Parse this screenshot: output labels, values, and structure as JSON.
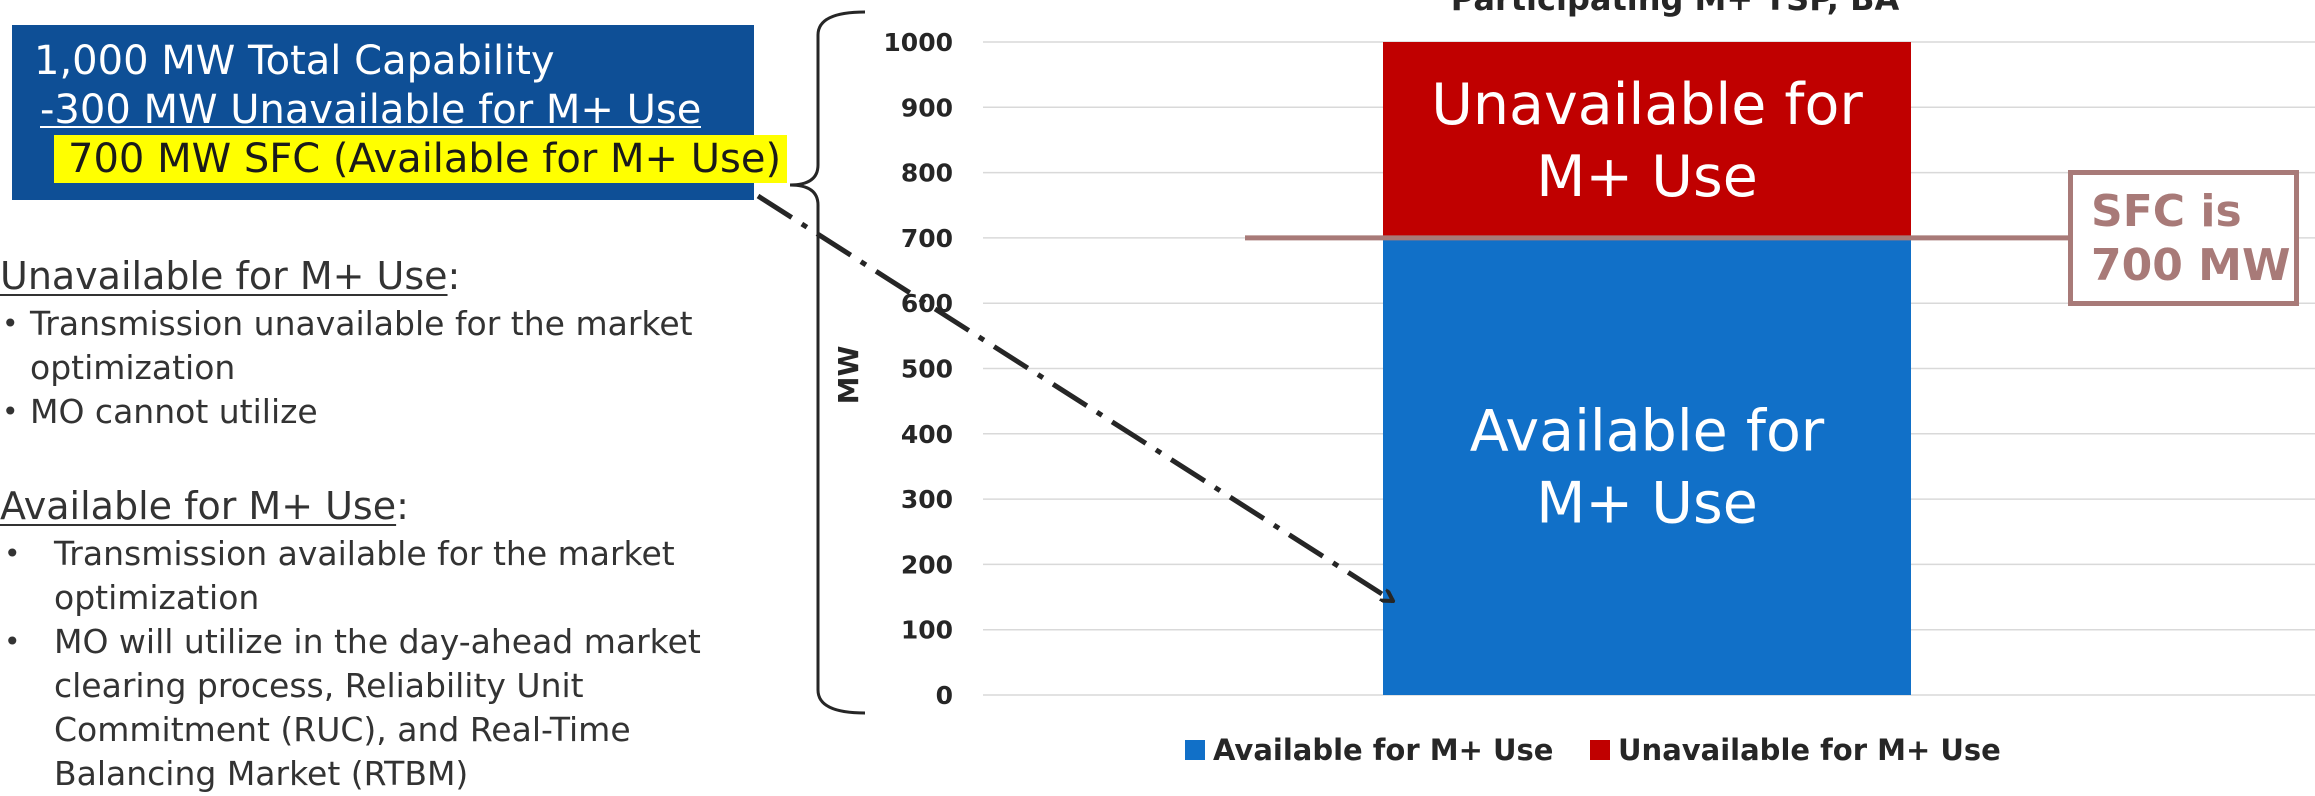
{
  "summary": {
    "line1": "1,000 MW Total Capability",
    "line2": "-300 MW Unavailable for M+ Use",
    "line3": "700 MW SFC (Available for M+ Use)"
  },
  "unavailable_section": {
    "heading": "Unavailable for M+ Use",
    "colon": ":",
    "bullets": [
      [
        "Transmission unavailable for the market",
        "optimization"
      ],
      [
        "MO cannot utilize"
      ]
    ]
  },
  "available_section": {
    "heading": "Available for M+ Use",
    "colon": ":",
    "bullets": [
      [
        "Transmission available for the market",
        "optimization"
      ],
      [
        "MO will utilize in the day-ahead market",
        "clearing process, Reliability Unit",
        "Commitment (RUC), and Real-Time",
        "Balancing Market (RTBM)"
      ]
    ]
  },
  "sfc_callout": {
    "line1": "SFC is",
    "line2": "700 MW",
    "color": "#a87a78"
  },
  "colors": {
    "available": "#1170c8",
    "unavailable": "#c00000",
    "box": "#0e4f96",
    "highlight": "#ffff00",
    "sfc_line": "#a87a78"
  },
  "chart_data": {
    "type": "bar",
    "stacked": true,
    "title": "Participating M+ TSP, BA",
    "ylabel": "MW",
    "xlabel": "",
    "ylim": [
      0,
      1000
    ],
    "yticks": [
      0,
      100,
      200,
      300,
      400,
      500,
      600,
      700,
      800,
      900,
      1000
    ],
    "grid": true,
    "legend_position": "bottom",
    "categories": [
      ""
    ],
    "series": [
      {
        "name": "Available for M+ Use",
        "values": [
          700
        ],
        "color": "#1170c8",
        "bar_label": [
          "Available for",
          "M+ Use"
        ]
      },
      {
        "name": "Unavailable for M+ Use",
        "values": [
          300
        ],
        "color": "#c00000",
        "bar_label": [
          "Unavailable for",
          "M+ Use"
        ]
      }
    ],
    "reference_line": {
      "value": 700
    }
  }
}
